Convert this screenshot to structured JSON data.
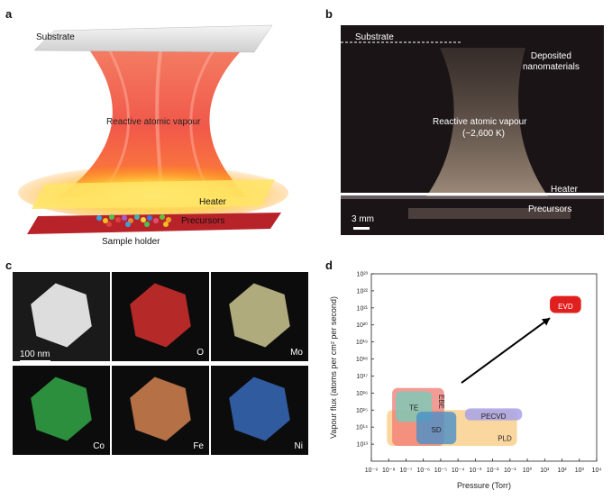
{
  "panels": {
    "a": {
      "letter": "a",
      "labels": {
        "substrate": "Substrate",
        "vapour": "Reactive atomic vapour",
        "heater": "Heater",
        "precursors": "Precursors",
        "holder": "Sample holder"
      }
    },
    "b": {
      "letter": "b",
      "labels": {
        "substrate": "Substrate",
        "deposited": [
          "Deposited",
          "nanomaterials"
        ],
        "vapour": "Reactive atomic vapour",
        "temp": "(~2,600 K)",
        "heater": "Heater",
        "precursors": "Precursors",
        "scale": "3 mm"
      }
    },
    "c": {
      "letter": "c",
      "scale": "100 nm",
      "tiles": [
        {
          "label": "",
          "color": "#e8e8e8"
        },
        {
          "label": "O",
          "color": "#e0322f"
        },
        {
          "label": "Mo",
          "color": "#d9d39a"
        },
        {
          "label": "Co",
          "color": "#35b04a"
        },
        {
          "label": "Fe",
          "color": "#e08a55"
        },
        {
          "label": "Ni",
          "color": "#3a6fc4"
        }
      ]
    },
    "d": {
      "letter": "d"
    }
  },
  "chart_data": {
    "type": "scatter",
    "xlabel": "Pressure (Torr)",
    "ylabel": "Vapour flux (atoms per cm² per second)",
    "x_scale": "log",
    "y_scale": "log",
    "xlim_exp": [
      -9,
      4
    ],
    "ylim_exp": [
      12,
      23
    ],
    "x_ticks": [
      "10⁻⁹",
      "10⁻⁸",
      "10⁻⁷",
      "10⁻⁶",
      "10⁻⁵",
      "10⁻⁴",
      "10⁻³",
      "10⁻²",
      "10⁻¹",
      "10⁰",
      "10¹",
      "10²",
      "10³",
      "10⁴"
    ],
    "y_ticks": [
      "10¹³",
      "10¹⁴",
      "10¹⁵",
      "10¹⁶",
      "10¹⁷",
      "10¹⁸",
      "10¹⁹",
      "10²⁰",
      "10²¹",
      "10²²",
      "10²³"
    ],
    "regions": [
      {
        "name": "PLD",
        "x": [
          -8.1,
          -0.6
        ],
        "y": [
          12.9,
          15.0
        ],
        "color": "#f7c97e",
        "opacity": 0.75
      },
      {
        "name": "EBE",
        "x": [
          -7.8,
          -4.8
        ],
        "y": [
          12.9,
          16.3
        ],
        "color": "#f07a73",
        "opacity": 0.75
      },
      {
        "name": "TE",
        "x": [
          -7.6,
          -5.5
        ],
        "y": [
          14.3,
          16.1
        ],
        "color": "#79cbb8",
        "opacity": 0.8
      },
      {
        "name": "PECVD",
        "x": [
          -3.6,
          -0.3
        ],
        "y": [
          14.4,
          15.1
        ],
        "color": "#a7a2e8",
        "opacity": 0.85
      },
      {
        "name": "SD",
        "x": [
          -6.4,
          -4.1
        ],
        "y": [
          13.0,
          14.9
        ],
        "color": "#4a90c8",
        "opacity": 0.8
      },
      {
        "name": "EVD",
        "x": [
          1.3,
          3.1
        ],
        "y": [
          20.7,
          21.7
        ],
        "color": "#e0201f",
        "opacity": 1.0
      }
    ],
    "arrow": {
      "from": [
        -3.8,
        16.6
      ],
      "to": [
        1.3,
        20.4
      ]
    }
  }
}
